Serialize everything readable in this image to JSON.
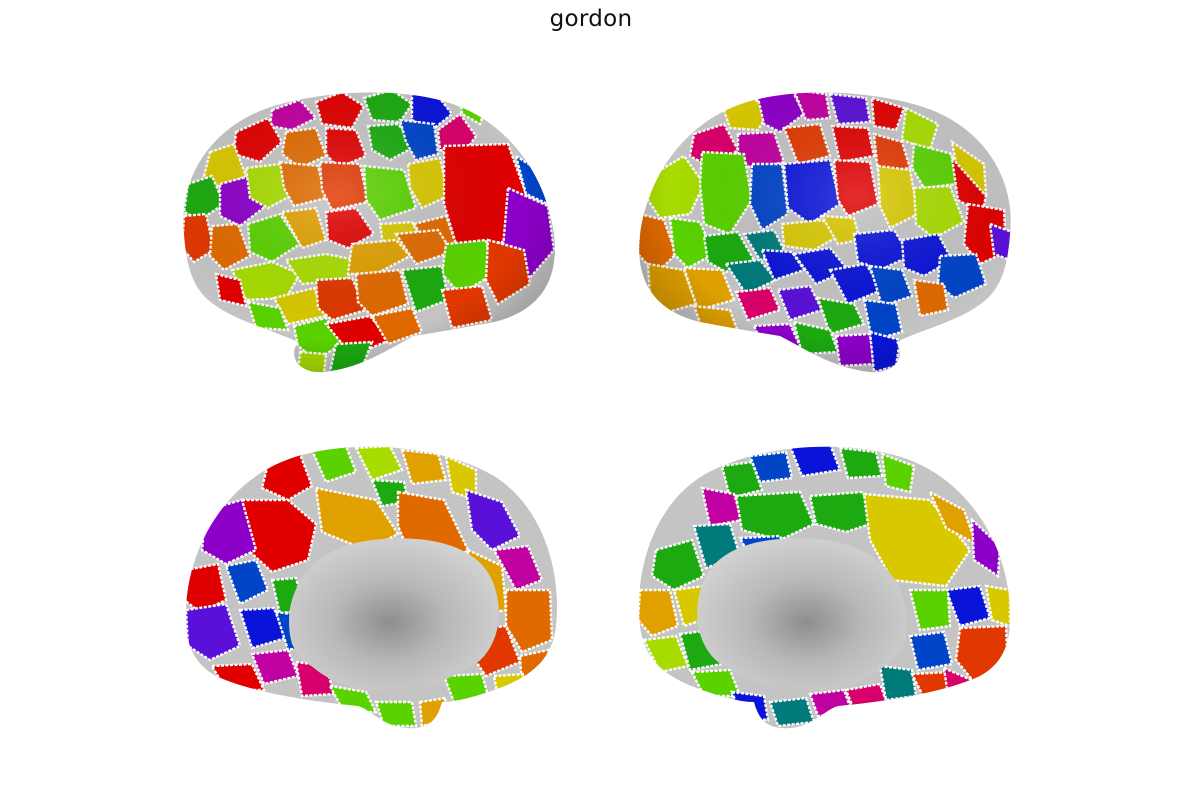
{
  "figure": {
    "title": "gordon"
  },
  "views": [
    {
      "hemisphere": "left",
      "view": "lateral"
    },
    {
      "hemisphere": "right",
      "view": "lateral"
    },
    {
      "hemisphere": "left",
      "view": "medial"
    },
    {
      "hemisphere": "right",
      "view": "medial"
    }
  ],
  "colors": {
    "background": "#ffffff",
    "cortex_gray": "#c4c4c4",
    "medial_wall": "#b2b2b2",
    "parcel_border": "#ffffff",
    "palette": [
      "#e00000",
      "#e03800",
      "#e06a00",
      "#e0a000",
      "#d8c800",
      "#a8dc00",
      "#5ad200",
      "#1caa10",
      "#009040",
      "#007a7a",
      "#0044c8",
      "#0a14d8",
      "#5a10d8",
      "#8c00c8",
      "#c000a0",
      "#d8006a"
    ]
  }
}
